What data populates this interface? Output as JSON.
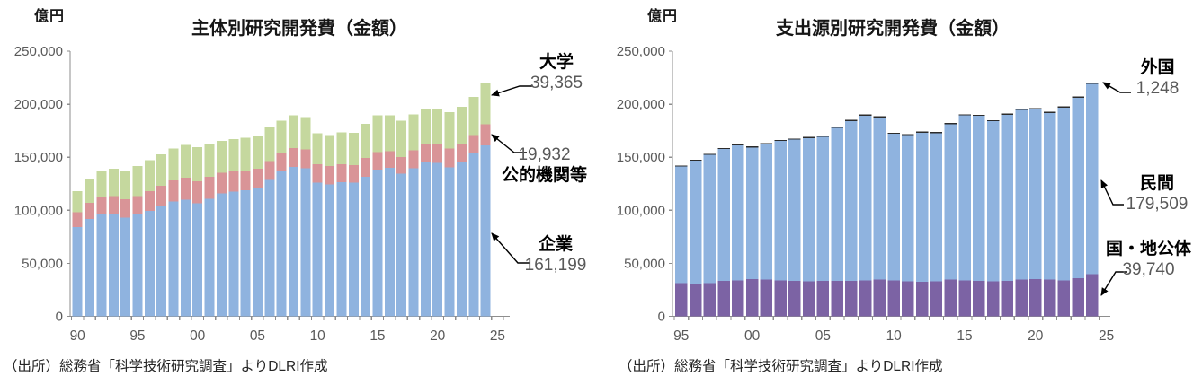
{
  "source_note": "（出所）総務省「科学技術研究調査」よりDLRI作成",
  "axis_colors": {
    "axis_line": "#8E8E8E",
    "tick_label": "#595959"
  },
  "chart_data": [
    {
      "type": "bar",
      "stacked": true,
      "title": "主体別研究開発費（金額）",
      "unit": "億円",
      "xlabel": "",
      "ylabel": "億円",
      "ylim": [
        0,
        250000
      ],
      "grid": false,
      "legend_position": "none",
      "ytick_labels": [
        "0",
        "50,000",
        "100,000",
        "150,000",
        "200,000",
        "250,000"
      ],
      "xtick_labels": [
        "90",
        "95",
        "00",
        "05",
        "10",
        "15",
        "20",
        "25"
      ],
      "categories": [
        1990,
        1991,
        1992,
        1993,
        1994,
        1995,
        1996,
        1997,
        1998,
        1999,
        2000,
        2001,
        2002,
        2003,
        2004,
        2005,
        2006,
        2007,
        2008,
        2009,
        2010,
        2011,
        2012,
        2013,
        2014,
        2015,
        2016,
        2017,
        2018,
        2019,
        2020,
        2021,
        2022,
        2023,
        2024
      ],
      "series": [
        {
          "name": "企業",
          "color": "#8FB3DF",
          "values": [
            84000,
            92000,
            97000,
            96500,
            93000,
            96000,
            99500,
            104000,
            108500,
            110000,
            106500,
            111000,
            116000,
            117500,
            119000,
            121000,
            128500,
            136500,
            141000,
            139500,
            126000,
            124500,
            126500,
            126000,
            131500,
            138500,
            140000,
            134500,
            139500,
            145500,
            144500,
            140500,
            145000,
            154000,
            161199
          ]
        },
        {
          "name": "公的機関等",
          "color": "#D99497",
          "values": [
            14000,
            15000,
            16000,
            17000,
            17500,
            17500,
            18500,
            19000,
            19500,
            20500,
            21000,
            20500,
            19500,
            19000,
            18500,
            18000,
            18000,
            17500,
            17500,
            18000,
            17500,
            17000,
            17000,
            16500,
            18000,
            16500,
            15500,
            15500,
            17000,
            16500,
            18000,
            17800,
            17500,
            17000,
            19932
          ]
        },
        {
          "name": "大学",
          "color": "#C5D89E",
          "values": [
            20000,
            23000,
            24500,
            25500,
            26000,
            28000,
            29000,
            29500,
            30000,
            31000,
            32000,
            31000,
            30000,
            30500,
            31000,
            30500,
            31500,
            30500,
            31000,
            30500,
            29000,
            29500,
            30000,
            30500,
            32000,
            34700,
            33900,
            34300,
            34000,
            33300,
            33300,
            34100,
            34900,
            36000,
            39365
          ]
        }
      ],
      "callouts": [
        {
          "series": "大学",
          "label": "大学",
          "value": "39,365"
        },
        {
          "series": "公的機関等",
          "label": "公的機関等",
          "value": "19,932"
        },
        {
          "series": "企業",
          "label": "企業",
          "value": "161,199"
        }
      ]
    },
    {
      "type": "bar",
      "stacked": true,
      "title": "支出源別研究開発費（金額）",
      "unit": "億円",
      "xlabel": "",
      "ylabel": "億円",
      "ylim": [
        0,
        250000
      ],
      "grid": false,
      "legend_position": "none",
      "ytick_labels": [
        "0",
        "50,000",
        "100,000",
        "150,000",
        "200,000",
        "250,000"
      ],
      "xtick_labels": [
        "95",
        "00",
        "05",
        "10",
        "15",
        "20",
        "25"
      ],
      "categories": [
        1995,
        1996,
        1997,
        1998,
        1999,
        2000,
        2001,
        2002,
        2003,
        2004,
        2005,
        2006,
        2007,
        2008,
        2009,
        2010,
        2011,
        2012,
        2013,
        2014,
        2015,
        2016,
        2017,
        2018,
        2019,
        2020,
        2021,
        2022,
        2023,
        2024
      ],
      "series": [
        {
          "name": "国・地公体",
          "color": "#7C63A4",
          "values": [
            31500,
            31000,
            31500,
            33500,
            34000,
            35000,
            34500,
            34000,
            33500,
            33000,
            33500,
            33500,
            33500,
            34000,
            34500,
            34000,
            33000,
            32500,
            33000,
            34500,
            34000,
            33500,
            33000,
            33500,
            34500,
            35000,
            34500,
            34000,
            36000,
            39740
          ]
        },
        {
          "name": "民間",
          "color": "#8FB3DF",
          "values": [
            109700,
            115700,
            120700,
            124200,
            127200,
            124200,
            127700,
            131200,
            133100,
            135100,
            135600,
            144100,
            150600,
            155100,
            153100,
            138100,
            137700,
            140700,
            139700,
            146700,
            155300,
            155400,
            150800,
            156400,
            160200,
            160200,
            157300,
            162800,
            170200,
            179509
          ]
        },
        {
          "name": "外国",
          "color": "#2B2B2B",
          "values": [
            300,
            300,
            300,
            300,
            300,
            300,
            300,
            300,
            400,
            400,
            400,
            400,
            400,
            400,
            400,
            400,
            300,
            300,
            300,
            300,
            400,
            500,
            500,
            600,
            600,
            600,
            600,
            600,
            800,
            1248
          ]
        }
      ],
      "callouts": [
        {
          "series": "外国",
          "label": "外国",
          "value": "1,248"
        },
        {
          "series": "民間",
          "label": "民間",
          "value": "179,509"
        },
        {
          "series": "国・地公体",
          "label": "国・地公体",
          "value": "39,740"
        }
      ]
    }
  ]
}
